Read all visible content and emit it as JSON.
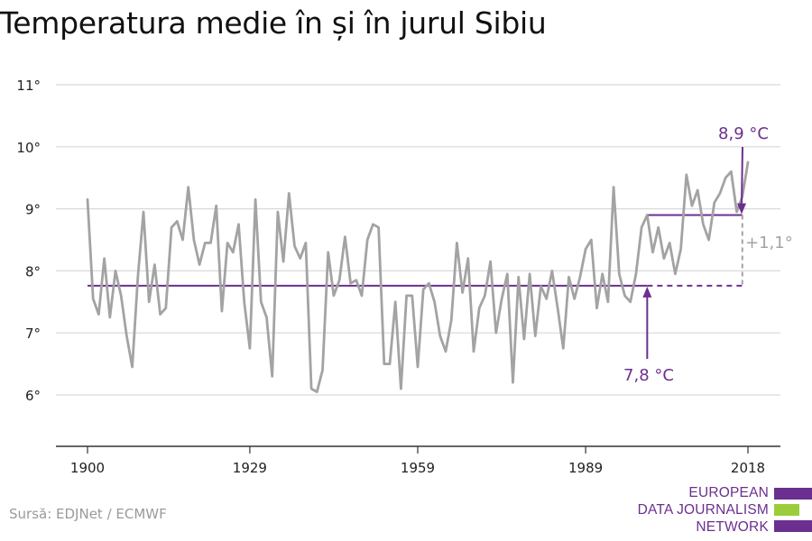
{
  "title": "Temperatura medie în și în jurul Sibiu",
  "source": "Sursă: EDJNet / ECMWF",
  "logo": {
    "lines": [
      "EUROPEAN",
      "DATA JOURNALISM",
      "NETWORK"
    ]
  },
  "colors": {
    "series": "#a3a3a3",
    "reference": "#6b2f8f",
    "difference": "#a3a3a3",
    "grid": "#d9d9d9",
    "axis": "#333333",
    "logo_purple": "#6b2f8f",
    "logo_green": "#9ccc3c"
  },
  "chart_data": {
    "type": "line",
    "title": "Temperatura medie în și în jurul Sibiu",
    "xlabel": "",
    "ylabel": "",
    "xlim": [
      1900,
      2018
    ],
    "ylim": [
      5.2,
      11
    ],
    "x_ticks": [
      1900,
      1929,
      1959,
      1989,
      2018
    ],
    "y_ticks": [
      6,
      7,
      8,
      9,
      10,
      11
    ],
    "y_tick_labels": [
      "6°",
      "7°",
      "8°",
      "9°",
      "10°",
      "11°"
    ],
    "grid": true,
    "series": [
      {
        "x": [
          1900,
          1901,
          1902,
          1903,
          1904,
          1905,
          1906,
          1907,
          1908,
          1909,
          1910,
          1911,
          1912,
          1913,
          1914,
          1915,
          1916,
          1917,
          1918,
          1919,
          1920,
          1921,
          1922,
          1923,
          1924,
          1925,
          1926,
          1927,
          1928,
          1929,
          1930,
          1931,
          1932,
          1933,
          1934,
          1935,
          1936,
          1937,
          1938,
          1939,
          1940,
          1941,
          1942,
          1943,
          1944,
          1945,
          1946,
          1947,
          1948,
          1949,
          1950,
          1951,
          1952,
          1953,
          1954,
          1955,
          1956,
          1957,
          1958,
          1959,
          1960,
          1961,
          1962,
          1963,
          1964,
          1965,
          1966,
          1967,
          1968,
          1969,
          1970,
          1971,
          1972,
          1973,
          1974,
          1975,
          1976,
          1977,
          1978,
          1979,
          1980,
          1981,
          1982,
          1983,
          1984,
          1985,
          1986,
          1987,
          1988,
          1989,
          1990,
          1991,
          1992,
          1993,
          1994,
          1995,
          1996,
          1997,
          1998,
          1999,
          2000,
          2001,
          2002,
          2003,
          2004,
          2005,
          2006,
          2007,
          2008,
          2009,
          2010,
          2011,
          2012,
          2013,
          2014,
          2015,
          2016,
          2017,
          2018
        ],
        "values": [
          9.15,
          7.55,
          7.3,
          8.2,
          7.25,
          8.0,
          7.6,
          6.95,
          6.45,
          7.9,
          8.95,
          7.5,
          8.1,
          7.3,
          7.4,
          8.7,
          8.8,
          8.5,
          9.35,
          8.5,
          8.1,
          8.45,
          8.45,
          9.05,
          7.35,
          8.45,
          8.3,
          8.75,
          7.5,
          6.75,
          9.15,
          7.5,
          7.25,
          6.3,
          8.95,
          8.15,
          9.25,
          8.4,
          8.2,
          8.45,
          6.1,
          6.05,
          6.4,
          8.3,
          7.6,
          7.85,
          8.55,
          7.8,
          7.85,
          7.6,
          8.5,
          8.75,
          8.7,
          6.5,
          6.5,
          7.5,
          6.1,
          7.6,
          7.6,
          6.45,
          7.7,
          7.8,
          7.5,
          6.95,
          6.7,
          7.2,
          8.45,
          7.65,
          8.2,
          6.7,
          7.4,
          7.6,
          8.15,
          7.0,
          7.55,
          7.95,
          6.2,
          7.9,
          6.9,
          7.95,
          6.95,
          7.75,
          7.55,
          8.0,
          7.4,
          6.75,
          7.9,
          7.55,
          7.9,
          8.35,
          8.5,
          7.4,
          7.95,
          7.5,
          9.35,
          7.95,
          7.6,
          7.5,
          7.95,
          8.7,
          8.9,
          8.3,
          8.7,
          8.2,
          8.45,
          7.95,
          8.35,
          9.55,
          9.05,
          9.3,
          8.75,
          8.5,
          9.1,
          9.25,
          9.5,
          9.6,
          8.95,
          9.2,
          9.75
        ]
      }
    ],
    "reference_lines": [
      {
        "label": "7,8 °C",
        "value": 7.76,
        "x_start": 1900,
        "x_end": 2000,
        "dashed_from": 2000,
        "dashed_to": 2017
      },
      {
        "label": "8,9 °C",
        "value": 8.9,
        "x_start": 2000,
        "x_end": 2017
      }
    ],
    "annotations": [
      {
        "text": "8,9 °C"
      },
      {
        "text": "7,8 °C"
      },
      {
        "text": "+1,1°"
      }
    ]
  }
}
